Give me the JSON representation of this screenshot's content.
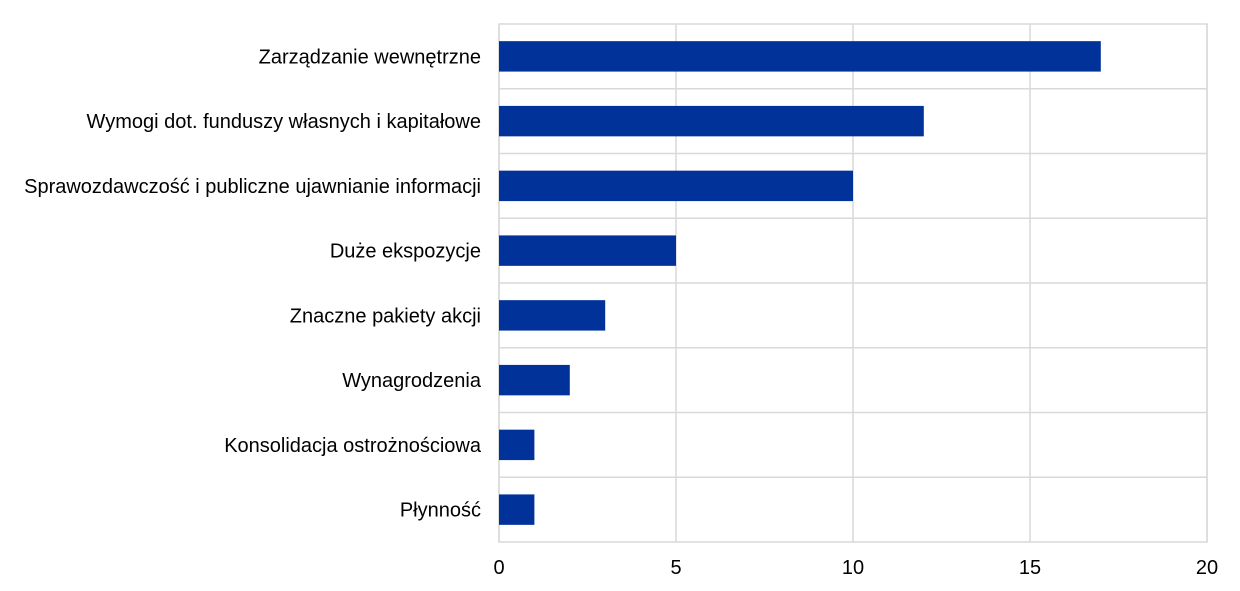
{
  "chart_data": {
    "type": "bar",
    "orientation": "horizontal",
    "categories": [
      "Zarządzanie wewnętrzne",
      "Wymogi dot. funduszy własnych i kapitałowe",
      "Sprawozdawczość i publiczne ujawnianie informacji",
      "Duże ekspozycje",
      "Znaczne pakiety akcji",
      "Wynagrodzenia",
      "Konsolidacja ostrożnościowa",
      "Płynność"
    ],
    "values": [
      17,
      12,
      10,
      5,
      3,
      2,
      1,
      1
    ],
    "xlim": [
      0,
      20
    ],
    "xticks": [
      0,
      5,
      10,
      15,
      20
    ],
    "xtick_labels": [
      "0",
      "5",
      "10",
      "15",
      "20"
    ],
    "grid": true,
    "bar_color": "#003299"
  }
}
